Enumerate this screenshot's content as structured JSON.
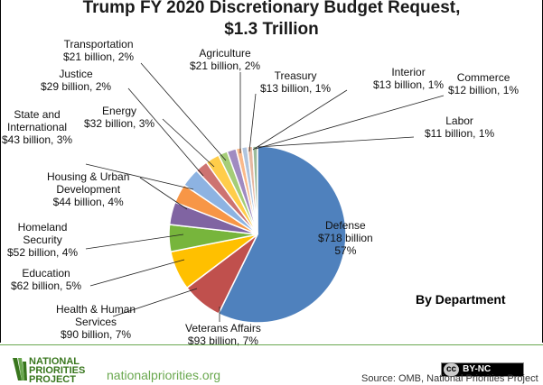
{
  "chart_data": {
    "type": "pie",
    "title": "Trump FY 2020 Discretionary  Budget Request,",
    "title_line2": "$1.3 Trillion",
    "subtitle": "By Department",
    "start": "top",
    "direction": "clockwise",
    "slices": [
      {
        "name": "Defense",
        "value": 718,
        "pct": 57,
        "color": "#4f81bd",
        "label": [
          "Defense",
          "$718 billion",
          "57%"
        ]
      },
      {
        "name": "Veterans Affairs",
        "value": 93,
        "pct": 7,
        "color": "#c0504d",
        "label": [
          "Veterans Affairs",
          "$93 billion, 7%"
        ]
      },
      {
        "name": "Health & Human Services",
        "value": 90,
        "pct": 7,
        "color": "#ffc000",
        "label": [
          "Health & Human",
          "Services",
          "$90 billion, 7%"
        ]
      },
      {
        "name": "Education",
        "value": 62,
        "pct": 5,
        "color": "#77b53c",
        "label": [
          "Education",
          "$62 billion, 5%"
        ]
      },
      {
        "name": "Homeland Security",
        "value": 52,
        "pct": 4,
        "color": "#8064a2",
        "label": [
          "Homeland",
          "Security",
          "$52 billion, 4%"
        ]
      },
      {
        "name": "Housing & Urban Development",
        "value": 44,
        "pct": 4,
        "color": "#f79646",
        "label": [
          "Housing & Urban",
          "Development",
          "$44 billion, 4%"
        ]
      },
      {
        "name": "State and International",
        "value": 43,
        "pct": 3,
        "color": "#8db3e2",
        "label": [
          "State and",
          "International",
          "$43 billion, 3%"
        ]
      },
      {
        "name": "Justice",
        "value": 29,
        "pct": 2,
        "color": "#cd7371",
        "label": [
          "Justice",
          "$29 billion, 2%"
        ]
      },
      {
        "name": "Energy",
        "value": 32,
        "pct": 3,
        "color": "#ffcd4a",
        "label": [
          "Energy",
          "$32 billion, 3%"
        ]
      },
      {
        "name": "Transportation",
        "value": 21,
        "pct": 2,
        "color": "#a5cd77",
        "label": [
          "Transportation",
          "$21 billion, 2%"
        ]
      },
      {
        "name": "Agriculture",
        "value": 21,
        "pct": 2,
        "color": "#a08bc1",
        "label": [
          "Agriculture",
          "$21 billion, 2%"
        ]
      },
      {
        "name": "Treasury",
        "value": 13,
        "pct": 1,
        "color": "#fab98a",
        "label": [
          "Treasury",
          "$13 billion, 1%"
        ]
      },
      {
        "name": "Interior",
        "value": 13,
        "pct": 1,
        "color": "#b0c4de",
        "label": [
          "Interior",
          "$13 billion, 1%"
        ]
      },
      {
        "name": "Commerce",
        "value": 12,
        "pct": 1,
        "color": "#e6b8a2",
        "label": [
          "Commerce",
          "$12 billion, 1%"
        ]
      },
      {
        "name": "Labor",
        "value": 11,
        "pct": 1,
        "color": "#9bbb9b",
        "label": [
          "Labor",
          "$11 billion, 1%"
        ]
      }
    ]
  },
  "footer": {
    "logo_lines": [
      "NATIONAL",
      "PRIORITIES",
      "PROJECT"
    ],
    "site": "nationalpriorities.org",
    "license": "BY-NC",
    "license_cc": "cc",
    "source": "Source: OMB, National Priorities Project"
  }
}
